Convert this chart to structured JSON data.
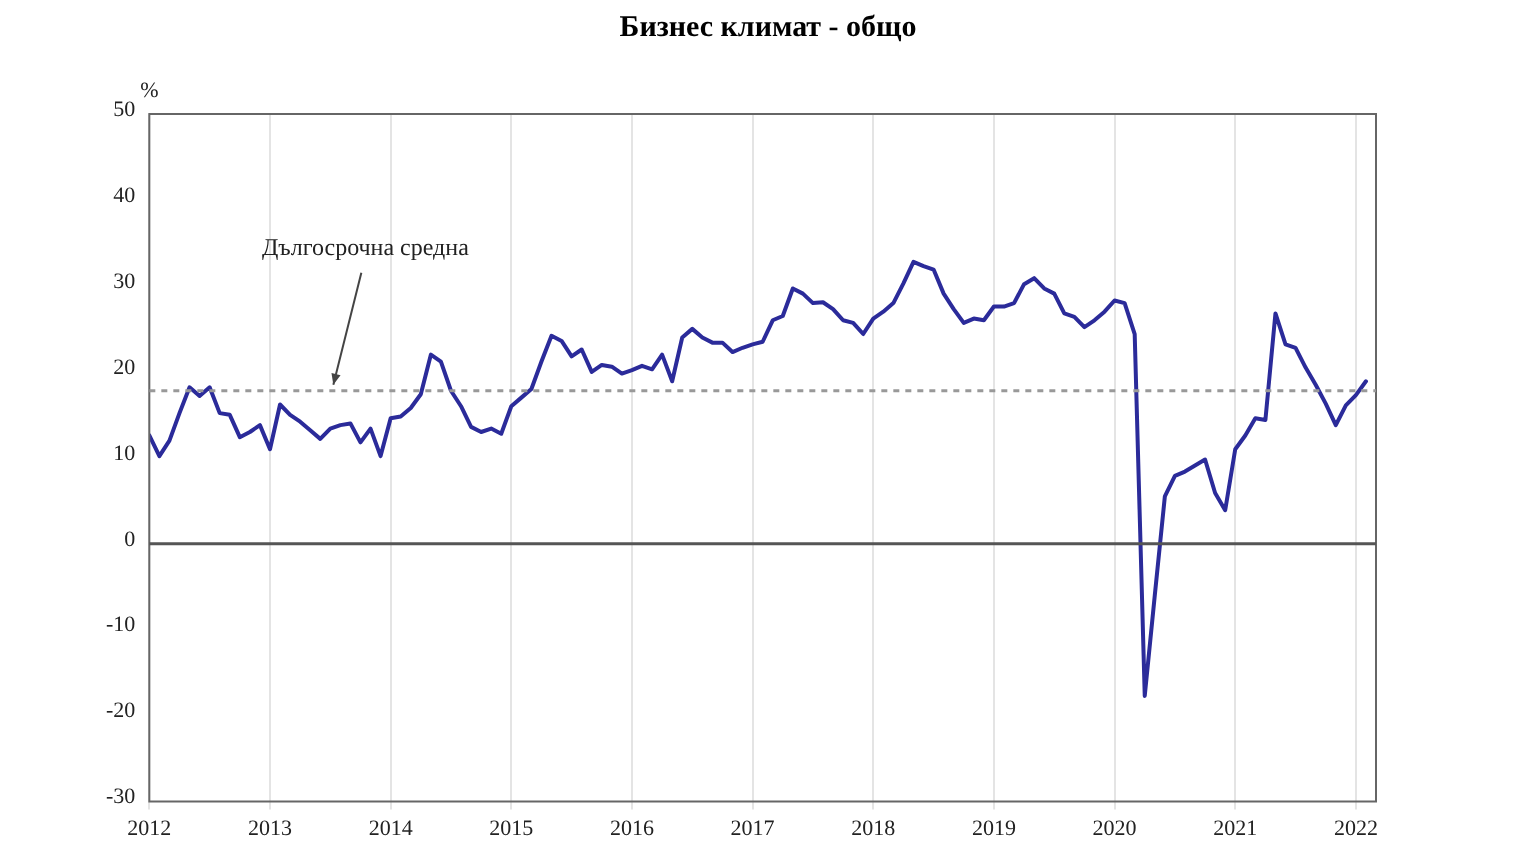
{
  "chart_data": {
    "type": "line",
    "title": "Бизнес климат - общо",
    "ylabel": "%",
    "x": [
      "2012-01",
      "2012-02",
      "2012-03",
      "2012-04",
      "2012-05",
      "2012-06",
      "2012-07",
      "2012-08",
      "2012-09",
      "2012-10",
      "2012-11",
      "2012-12",
      "2013-01",
      "2013-02",
      "2013-03",
      "2013-04",
      "2013-05",
      "2013-06",
      "2013-07",
      "2013-08",
      "2013-09",
      "2013-10",
      "2013-11",
      "2013-12",
      "2014-01",
      "2014-02",
      "2014-03",
      "2014-04",
      "2014-05",
      "2014-06",
      "2014-07",
      "2014-08",
      "2014-09",
      "2014-10",
      "2014-11",
      "2014-12",
      "2015-01",
      "2015-02",
      "2015-03",
      "2015-04",
      "2015-05",
      "2015-06",
      "2015-07",
      "2015-08",
      "2015-09",
      "2015-10",
      "2015-11",
      "2015-12",
      "2016-01",
      "2016-02",
      "2016-03",
      "2016-04",
      "2016-05",
      "2016-06",
      "2016-07",
      "2016-08",
      "2016-09",
      "2016-10",
      "2016-11",
      "2016-12",
      "2017-01",
      "2017-02",
      "2017-03",
      "2017-04",
      "2017-05",
      "2017-06",
      "2017-07",
      "2017-08",
      "2017-09",
      "2017-10",
      "2017-11",
      "2017-12",
      "2018-01",
      "2018-02",
      "2018-03",
      "2018-04",
      "2018-05",
      "2018-06",
      "2018-07",
      "2018-08",
      "2018-09",
      "2018-10",
      "2018-11",
      "2018-12",
      "2019-01",
      "2019-02",
      "2019-03",
      "2019-04",
      "2019-05",
      "2019-06",
      "2019-07",
      "2019-08",
      "2019-09",
      "2019-10",
      "2019-11",
      "2019-12",
      "2020-01",
      "2020-02",
      "2020-03",
      "2020-04",
      "2020-05",
      "2020-06",
      "2020-07",
      "2020-08",
      "2020-09",
      "2020-10",
      "2020-11",
      "2020-12",
      "2021-01",
      "2021-02",
      "2021-03",
      "2021-04",
      "2021-05",
      "2021-06",
      "2021-07",
      "2021-08",
      "2021-09",
      "2021-10",
      "2021-11",
      "2021-12",
      "2022-01",
      "2022-02"
    ],
    "series": [
      {
        "color": "#2b2b9a",
        "values": [
          12.6,
          10.2,
          12,
          15.2,
          18.2,
          17.2,
          18.2,
          15.2,
          15,
          12.4,
          13,
          13.8,
          11,
          16.2,
          15,
          14.2,
          13.2,
          12.2,
          13.4,
          13.8,
          14,
          11.8,
          13.4,
          10.2,
          14.6,
          14.8,
          15.8,
          17.4,
          22,
          21.2,
          17.8,
          16,
          13.6,
          13,
          13.4,
          12.8,
          16,
          17,
          18,
          21.2,
          24.2,
          23.6,
          21.8,
          22.6,
          20,
          20.8,
          20.6,
          19.8,
          20.2,
          20.7,
          20.3,
          22,
          18.9,
          24,
          25,
          24,
          23.4,
          23.4,
          22.3,
          22.8,
          23.2,
          23.5,
          26,
          26.5,
          29.7,
          29.1,
          28,
          28.1,
          27.3,
          26,
          25.7,
          24.4,
          26.2,
          27,
          28,
          30.3,
          32.8,
          32.3,
          31.9,
          29.1,
          27.3,
          25.7,
          26.2,
          26,
          27.6,
          27.6,
          28,
          30.2,
          30.9,
          29.7,
          29.1,
          26.8,
          26.4,
          25.2,
          26,
          27,
          28.3,
          28,
          24.4,
          -17.7,
          -6,
          5.5,
          7.9,
          8.4,
          9.1,
          9.8,
          5.9,
          3.9,
          11,
          12.6,
          14.6,
          14.4,
          26.8,
          23.2,
          22.8,
          20.5,
          18.5,
          16.3,
          13.8,
          16.1,
          17.3,
          18.9
        ]
      }
    ],
    "xlim": [
      "2012-01",
      "2022-03"
    ],
    "xticks": [
      {
        "value": "2012",
        "label": "2012"
      },
      {
        "value": "2013",
        "label": "2013"
      },
      {
        "value": "2014",
        "label": "2014"
      },
      {
        "value": "2015",
        "label": "2015"
      },
      {
        "value": "2016",
        "label": "2016"
      },
      {
        "value": "2017",
        "label": "2017"
      },
      {
        "value": "2018",
        "label": "2018"
      },
      {
        "value": "2019",
        "label": "2019"
      },
      {
        "value": "2020",
        "label": "2020"
      },
      {
        "value": "2021",
        "label": "2021"
      },
      {
        "value": "2022",
        "label": "2022"
      }
    ],
    "ylim": [
      -30,
      50
    ],
    "yticks": [
      -30,
      -20,
      -10,
      0,
      10,
      20,
      30,
      40,
      50
    ],
    "ref_lines": [
      {
        "axis": "y",
        "value": 0,
        "color": "#555555",
        "line_style": "solid"
      },
      {
        "axis": "y",
        "value": 17.8,
        "label": "Дългосрочна средна",
        "color": "#999999",
        "line_style": "dotted"
      }
    ],
    "grid": "x",
    "legend": false,
    "marker": "none",
    "line_style": "solid"
  }
}
